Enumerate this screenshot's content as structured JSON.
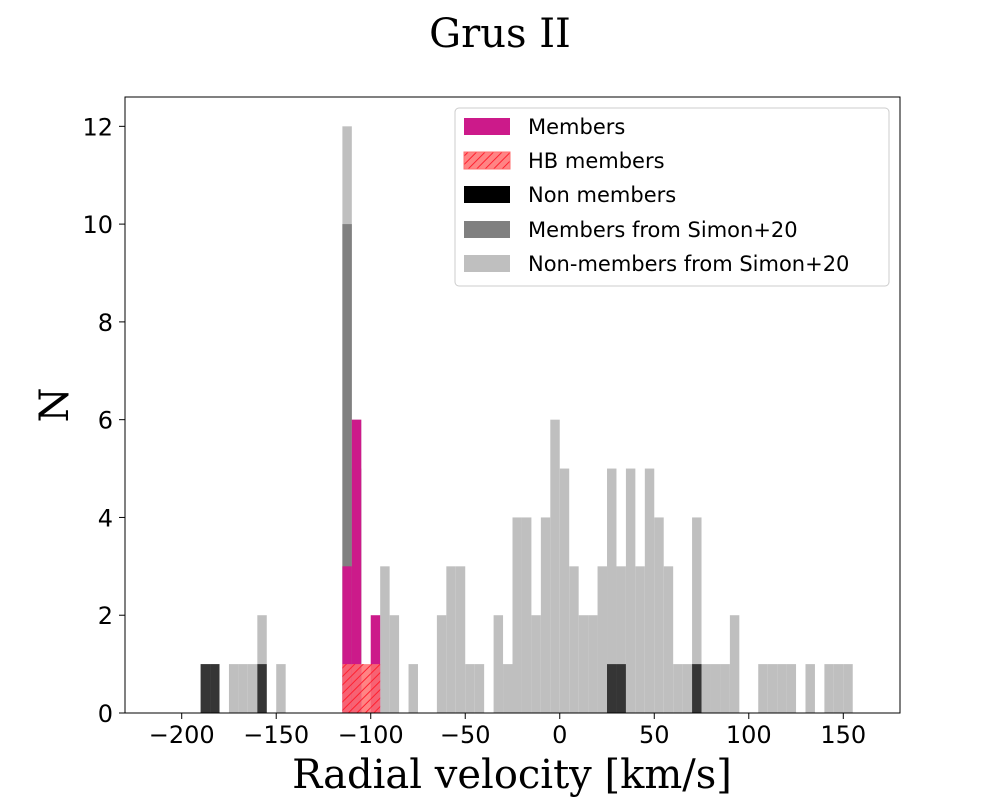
{
  "chart_data": {
    "type": "histogram",
    "title": "Grus II",
    "xlabel": "Radial velocity [km/s]",
    "ylabel": "N",
    "xlim": [
      -230,
      180
    ],
    "ylim": [
      0,
      12.6
    ],
    "xticks": [
      -200,
      -150,
      -100,
      -50,
      0,
      50,
      100,
      150
    ],
    "xtick_labels": [
      "−200",
      "−150",
      "−100",
      "−50",
      "0",
      "50",
      "100",
      "150"
    ],
    "yticks": [
      0,
      2,
      4,
      6,
      8,
      10,
      12
    ],
    "ytick_labels": [
      "0",
      "2",
      "4",
      "6",
      "8",
      "10",
      "12"
    ],
    "bin_width": 5,
    "legend_position": "top-right",
    "legend": [
      "Members",
      "HB members",
      "Non members",
      "Members from Simon+20",
      "Non-members from Simon+20"
    ],
    "series": [
      {
        "name": "Non-members from Simon+20",
        "color": "#bfbfbf",
        "bins": [
          [
            -210,
            0
          ],
          [
            -205,
            0
          ],
          [
            -200,
            0
          ],
          [
            -195,
            0
          ],
          [
            -190,
            1
          ],
          [
            -185,
            1
          ],
          [
            -180,
            0
          ],
          [
            -175,
            1
          ],
          [
            -170,
            1
          ],
          [
            -165,
            1
          ],
          [
            -160,
            2
          ],
          [
            -155,
            0
          ],
          [
            -150,
            1
          ],
          [
            -145,
            0
          ],
          [
            -140,
            0
          ],
          [
            -135,
            0
          ],
          [
            -130,
            0
          ],
          [
            -125,
            0
          ],
          [
            -120,
            0
          ],
          [
            -115,
            12
          ],
          [
            -110,
            6
          ],
          [
            -105,
            0
          ],
          [
            -100,
            0
          ],
          [
            -95,
            3
          ],
          [
            -90,
            2
          ],
          [
            -85,
            0
          ],
          [
            -80,
            1
          ],
          [
            -75,
            0
          ],
          [
            -70,
            0
          ],
          [
            -65,
            2
          ],
          [
            -60,
            3
          ],
          [
            -55,
            3
          ],
          [
            -50,
            1
          ],
          [
            -45,
            1
          ],
          [
            -40,
            0
          ],
          [
            -35,
            2
          ],
          [
            -30,
            1
          ],
          [
            -25,
            4
          ],
          [
            -20,
            4
          ],
          [
            -15,
            2
          ],
          [
            -10,
            4
          ],
          [
            -5,
            6
          ],
          [
            0,
            5
          ],
          [
            5,
            3
          ],
          [
            10,
            2
          ],
          [
            15,
            2
          ],
          [
            20,
            3
          ],
          [
            25,
            5
          ],
          [
            30,
            3
          ],
          [
            35,
            5
          ],
          [
            40,
            3
          ],
          [
            45,
            5
          ],
          [
            50,
            4
          ],
          [
            55,
            3
          ],
          [
            60,
            1
          ],
          [
            65,
            1
          ],
          [
            70,
            4
          ],
          [
            75,
            1
          ],
          [
            80,
            1
          ],
          [
            85,
            1
          ],
          [
            90,
            2
          ],
          [
            95,
            0
          ],
          [
            100,
            0
          ],
          [
            105,
            1
          ],
          [
            110,
            1
          ],
          [
            115,
            1
          ],
          [
            120,
            1
          ],
          [
            125,
            0
          ],
          [
            130,
            1
          ],
          [
            135,
            0
          ],
          [
            140,
            1
          ],
          [
            145,
            1
          ],
          [
            150,
            1
          ]
        ]
      },
      {
        "name": "Members from Simon+20",
        "color": "#808080",
        "bins": [
          [
            -115,
            10
          ],
          [
            -110,
            5
          ],
          [
            -105,
            0
          ],
          [
            -100,
            0
          ]
        ]
      },
      {
        "name": "Non members",
        "color": "#000000",
        "alpha": 0.72,
        "bins": [
          [
            -190,
            1
          ],
          [
            -185,
            1
          ],
          [
            -160,
            1
          ],
          [
            25,
            1
          ],
          [
            30,
            1
          ],
          [
            70,
            1
          ]
        ]
      },
      {
        "name": "Members",
        "color": "#cc1a8a",
        "bins": [
          [
            -115,
            3
          ],
          [
            -110,
            6
          ],
          [
            -105,
            0
          ],
          [
            -100,
            2
          ]
        ]
      },
      {
        "name": "HB members",
        "color": "#ff8080",
        "hatched": true,
        "bins": [
          [
            -115,
            1
          ],
          [
            -110,
            1
          ],
          [
            -105,
            1
          ],
          [
            -100,
            1
          ]
        ]
      }
    ]
  }
}
